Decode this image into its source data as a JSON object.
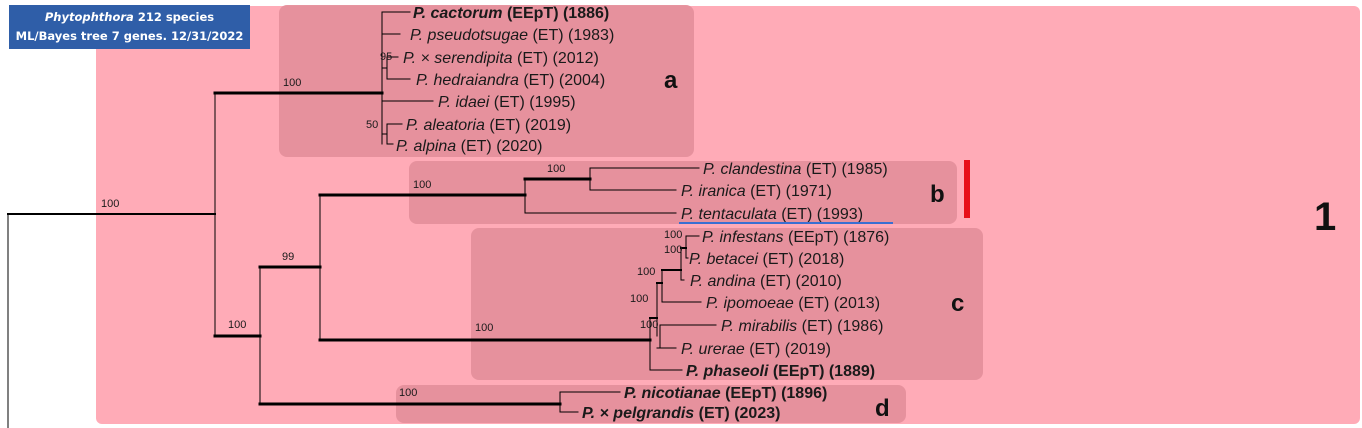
{
  "title": {
    "genus": "Phytophthora",
    "line1_rest": " 212 species",
    "line2": "ML/Bayes tree 7 genes. 12/31/2022"
  },
  "main_clade_label": "1",
  "subclade_labels": {
    "a": "a",
    "b": "b",
    "c": "c",
    "d": "d"
  },
  "colors": {
    "clade_background": "#ffabb7",
    "subclade_background": "#e58f9b",
    "title_background": "#2f5ea8",
    "marker_red": "#e8101a",
    "underline_blue": "#3b6fd1"
  },
  "taxa": [
    {
      "genus": "P.",
      "name": "cactorum",
      "status": "(EEpT)",
      "year": "(1886)",
      "bold": true
    },
    {
      "genus": "P.",
      "name": "pseudotsugae",
      "status": "(ET)",
      "year": "(1983)",
      "bold": false
    },
    {
      "genus": "P.",
      "name": "× serendipita",
      "status": "(ET)",
      "year": "(2012)",
      "bold": false
    },
    {
      "genus": "P.",
      "name": "hedraiandra",
      "status": "(ET)",
      "year": "(2004)",
      "bold": false
    },
    {
      "genus": "P.",
      "name": "idaei",
      "status": "(ET)",
      "year": "(1995)",
      "bold": false
    },
    {
      "genus": "P.",
      "name": "aleatoria",
      "status": "(ET)",
      "year": "(2019)",
      "bold": false
    },
    {
      "genus": "P.",
      "name": "alpina",
      "status": "(ET)",
      "year": "(2020)",
      "bold": false
    },
    {
      "genus": "P.",
      "name": "clandestina",
      "status": "(ET)",
      "year": "(1985)",
      "bold": false
    },
    {
      "genus": "P.",
      "name": "iranica",
      "status": "(ET)",
      "year": "(1971)",
      "bold": false
    },
    {
      "genus": "P.",
      "name": "tentaculata",
      "status": "(ET)",
      "year": "(1993)",
      "bold": false
    },
    {
      "genus": "P.",
      "name": "infestans",
      "status": "(EEpT)",
      "year": "(1876)",
      "bold": false
    },
    {
      "genus": "P.",
      "name": "betacei",
      "status": "(ET)",
      "year": "(2018)",
      "bold": false
    },
    {
      "genus": "P.",
      "name": "andina",
      "status": "(ET)",
      "year": "(2010)",
      "bold": false
    },
    {
      "genus": "P.",
      "name": "ipomoeae",
      "status": "(ET)",
      "year": "(2013)",
      "bold": false
    },
    {
      "genus": "P.",
      "name": "mirabilis",
      "status": "(ET)",
      "year": "(1986)",
      "bold": false
    },
    {
      "genus": "P.",
      "name": "urerae",
      "status": "(ET)",
      "year": "(2019)",
      "bold": false
    },
    {
      "genus": "P.",
      "name": "phaseoli",
      "status": "(EEpT)",
      "year": "(1889)",
      "bold": true
    },
    {
      "genus": "P.",
      "name": "nicotianae",
      "status": "(EEpT)",
      "year": "(1896)",
      "bold": true
    },
    {
      "genus": "P.",
      "name": "× pelgrandis",
      "status": "(ET)",
      "year": "(2023)",
      "bold": true
    }
  ],
  "support_values": [
    {
      "node": "root-crown",
      "value": "100"
    },
    {
      "node": "clade-a",
      "value": "100"
    },
    {
      "node": "serendipita-hedraiandra",
      "value": "95"
    },
    {
      "node": "aleatoria-alpina",
      "value": "50"
    },
    {
      "node": "clades-bcd",
      "value": "100"
    },
    {
      "node": "clades-bc",
      "value": "99"
    },
    {
      "node": "clade-b",
      "value": "100"
    },
    {
      "node": "clandestina-iranica",
      "value": "100"
    },
    {
      "node": "clade-c",
      "value": "100"
    },
    {
      "node": "infestans-betacei",
      "value": "100"
    },
    {
      "node": "infestans-betacei-andina",
      "value": "100"
    },
    {
      "node": "infestans-group-ipomoeae",
      "value": "100"
    },
    {
      "node": "mirabilis-node",
      "value": "100"
    },
    {
      "node": "c-core",
      "value": "100"
    },
    {
      "node": "clade-d",
      "value": "100"
    }
  ]
}
